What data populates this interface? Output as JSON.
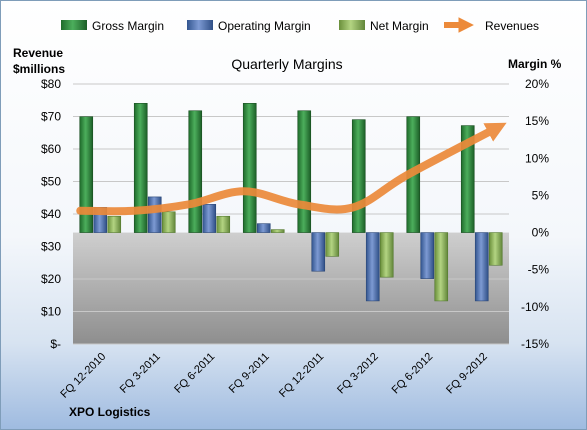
{
  "chart_data": {
    "type": "bar",
    "title": "Quarterly Margins",
    "left_axis_label": [
      "Revenue",
      "$millions"
    ],
    "right_axis_label": "Margin %",
    "company": "XPO Logistics",
    "categories": [
      "FQ 12-2010",
      "FQ 3-2011",
      "FQ 6-2011",
      "FQ 9-2011",
      "FQ 12-2011",
      "FQ 3-2012",
      "FQ 6-2012",
      "FQ 9-2012"
    ],
    "left_ticks": [
      "$-",
      "$10",
      "$20",
      "$30",
      "$40",
      "$50",
      "$60",
      "$70",
      "$80"
    ],
    "right_ticks": [
      "-15%",
      "-10%",
      "-5%",
      "0%",
      "5%",
      "10%",
      "15%",
      "20%"
    ],
    "left_ylim": [
      0,
      80
    ],
    "right_ylim": [
      -15,
      20
    ],
    "grid": true,
    "legend_position": "top",
    "series": [
      {
        "name": "Gross Margin",
        "kind": "bar",
        "axis": "right",
        "color": "#2e8b3c",
        "values": [
          15.6,
          17.4,
          16.4,
          17.4,
          16.4,
          15.2,
          15.6,
          14.4
        ]
      },
      {
        "name": "Operating Margin",
        "kind": "bar",
        "axis": "right",
        "color": "#4f74b8",
        "values": [
          3.4,
          4.8,
          3.8,
          1.2,
          -5.2,
          -9.2,
          -6.2,
          -9.2
        ]
      },
      {
        "name": "Net Margin",
        "kind": "bar",
        "axis": "right",
        "color": "#8cb65a",
        "values": [
          2.2,
          2.8,
          2.2,
          0.4,
          -3.2,
          -6.0,
          -9.2,
          -4.4
        ]
      },
      {
        "name": "Revenues",
        "kind": "line",
        "axis": "left",
        "color": "#ec8a3a",
        "values": [
          41,
          41,
          43,
          47,
          43,
          42,
          52,
          66
        ]
      }
    ]
  }
}
